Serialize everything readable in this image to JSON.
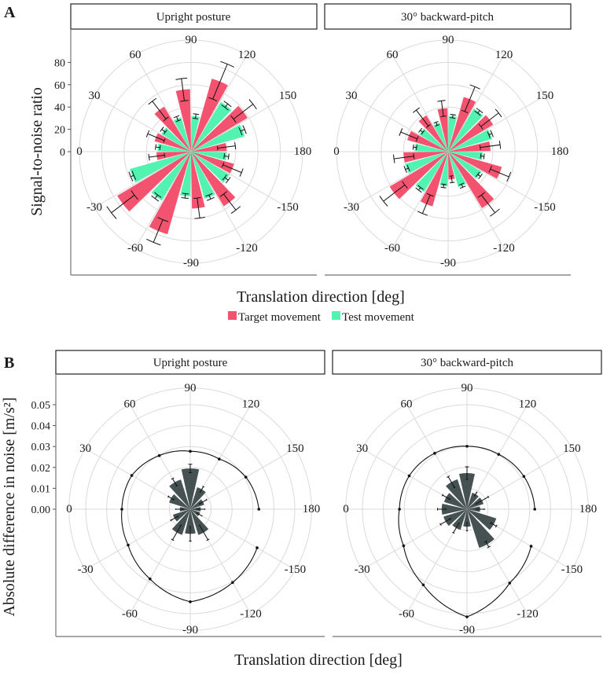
{
  "panel_A": {
    "label": "A",
    "ylabel": "Signal-to-noise ratio",
    "xlabel": "Translation direction [deg]",
    "yticks": [
      "0",
      "20",
      "40",
      "60",
      "80"
    ],
    "legend": [
      {
        "name": "Target movement",
        "color": "#F4536F"
      },
      {
        "name": "Test movement",
        "color": "#52F3B1"
      }
    ]
  },
  "panel_B": {
    "label": "B",
    "ylabel": "Absolute difference in noise [m/s²]",
    "xlabel": "Translation direction [deg]",
    "yticks": [
      "0.00",
      "0.01",
      "0.02",
      "0.03",
      "0.04",
      "0.05"
    ],
    "bar_color": "#465251",
    "line_color": "#111111"
  },
  "chart_data": [
    {
      "type": "bar",
      "coord": "polar",
      "panel": "A",
      "title": "Upright posture",
      "directions": [
        0,
        30,
        60,
        90,
        120,
        150,
        180,
        -150,
        -120,
        -90,
        -60,
        -30
      ],
      "angle_labels": [
        "0",
        "30",
        "60",
        "90",
        "120",
        "150",
        "180",
        "-150",
        "-120",
        "-90",
        "-60",
        "-30"
      ],
      "rlim": [
        0,
        100
      ],
      "rticks": [
        0,
        20,
        40,
        60,
        80
      ],
      "series": [
        {
          "name": "Target movement",
          "values": [
            31,
            34,
            47,
            56,
            68,
            59,
            32,
            40,
            57,
            51,
            77,
            77
          ],
          "errors": [
            7,
            8,
            10,
            10,
            17,
            11,
            8,
            9,
            9,
            9,
            11,
            13
          ]
        },
        {
          "name": "Test movement",
          "values": [
            57,
            30,
            31,
            32,
            32,
            52,
            50,
            32,
            40,
            44,
            40,
            51
          ],
          "errors": [
            1.5,
            2,
            2,
            2,
            2,
            2,
            2,
            2,
            2,
            2,
            2,
            2
          ]
        }
      ]
    },
    {
      "type": "bar",
      "coord": "polar",
      "panel": "A",
      "title": "30° backward-pitch",
      "directions": [
        0,
        30,
        60,
        90,
        120,
        150,
        180,
        -150,
        -120,
        -90,
        -60,
        -30
      ],
      "angle_labels": [
        "0",
        "30",
        "60",
        "90",
        "120",
        "150",
        "180",
        "-150",
        "-120",
        "-90",
        "-60",
        "-30"
      ],
      "rlim": [
        0,
        100
      ],
      "rticks": [
        0,
        20,
        40,
        60,
        80
      ],
      "series": [
        {
          "name": "Target movement",
          "values": [
            40,
            38,
            38,
            39,
            51,
            47,
            38,
            50,
            59,
            25,
            51,
            61
          ],
          "errors": [
            9,
            8,
            9,
            7,
            12,
            10,
            9,
            9,
            10,
            3,
            9,
            12
          ]
        },
        {
          "name": "Test movement",
          "values": [
            40,
            30,
            30,
            27,
            32,
            45,
            41,
            31,
            35,
            33,
            31,
            42
          ],
          "errors": [
            1.5,
            1.5,
            1.5,
            1.5,
            1.5,
            1.5,
            1.5,
            1.5,
            1.5,
            1.5,
            1.5,
            1.5
          ]
        }
      ]
    },
    {
      "type": "bar",
      "coord": "polar",
      "panel": "B",
      "title": "Upright posture",
      "directions": [
        0,
        30,
        60,
        90,
        120,
        150,
        180,
        -150,
        -120,
        -90,
        -60,
        -30
      ],
      "angle_labels": [
        "0",
        "30",
        "60",
        "90",
        "120",
        "150",
        "180",
        "-150",
        "-120",
        "-90",
        "-60",
        "-30"
      ],
      "rlim": [
        0,
        0.058
      ],
      "rticks": [
        0,
        0.01,
        0.02,
        0.03,
        0.04,
        0.05
      ],
      "bars": {
        "values": [
          0.005,
          0.0106,
          0.0149,
          0.0195,
          0.011,
          0.007,
          0.005,
          0.005,
          0.0129,
          0.0118,
          0.0129,
          0.0087
        ],
        "errors": [
          0.002,
          0.0015,
          0.002,
          0.002,
          0.0015,
          0.002,
          0.002,
          0.0015,
          0.004,
          0.0035,
          0.004,
          0.002
        ]
      },
      "line": {
        "directions": [
          180,
          150,
          120,
          90,
          60,
          30,
          0,
          -30,
          -60,
          -90,
          -120,
          -150
        ],
        "values": [
          0.0328,
          0.0307,
          0.0277,
          0.0277,
          0.0296,
          0.0323,
          0.0327,
          0.0343,
          0.0385,
          0.0443,
          0.0405,
          0.0369
        ]
      }
    },
    {
      "type": "bar",
      "coord": "polar",
      "panel": "B",
      "title": "30° backward-pitch",
      "directions": [
        0,
        30,
        60,
        90,
        120,
        150,
        180,
        -150,
        -120,
        -90,
        -60,
        -30
      ],
      "angle_labels": [
        "0",
        "30",
        "60",
        "90",
        "120",
        "150",
        "180",
        "-150",
        "-120",
        "-90",
        "-60",
        "-30"
      ],
      "rlim": [
        0,
        0.058
      ],
      "rticks": [
        0,
        0.01,
        0.02,
        0.03,
        0.04,
        0.05
      ],
      "bars": {
        "values": [
          0.0121,
          0.0115,
          0.015,
          0.0173,
          0.0083,
          0.0083,
          0.0063,
          0.0147,
          0.0194,
          0.0084,
          0.0104,
          0.0118
        ],
        "errors": [
          0.002,
          0.002,
          0.003,
          0.003,
          0.001,
          0.0035,
          0.002,
          0.0015,
          0.0015,
          0.002,
          0.0026,
          0.0028
        ]
      },
      "line": {
        "directions": [
          180,
          150,
          120,
          90,
          60,
          30,
          0,
          -30,
          -60,
          -90,
          -120,
          -150
        ],
        "values": [
          0.0324,
          0.0314,
          0.0303,
          0.0301,
          0.0309,
          0.0319,
          0.0323,
          0.035,
          0.0418,
          0.0515,
          0.0408,
          0.0354
        ]
      }
    }
  ]
}
